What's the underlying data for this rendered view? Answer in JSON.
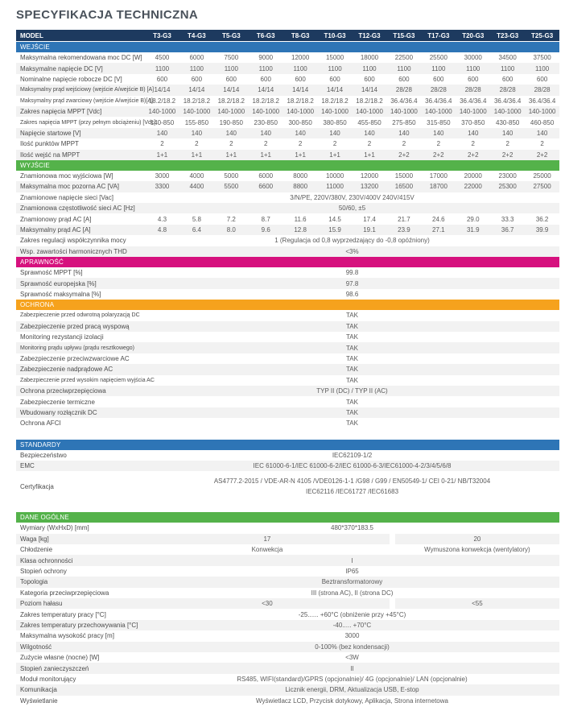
{
  "page": {
    "title": "SPECYFIKACJA TECHNICZNA"
  },
  "table": {
    "colors": {
      "navy": "#1d3a5f",
      "blue": "#2e75b6",
      "green": "#54b24a",
      "magenta": "#d6117e",
      "orange": "#f6a21d",
      "stripe": "#f2f2f2"
    },
    "header": {
      "label": "MODEL",
      "models": [
        "T3-G3",
        "T4-G3",
        "T5-G3",
        "T6-G3",
        "T8-G3",
        "T10-G3",
        "T12-G3",
        "T15-G3",
        "T17-G3",
        "T20-G3",
        "T23-G3",
        "T25-G3"
      ]
    },
    "sections": [
      {
        "title": "WEJŚCIE",
        "color": "blue",
        "rows": [
          {
            "label": "Maksymalna rekomendowana moc DC [W]",
            "type": "cols",
            "values": [
              "4500",
              "6000",
              "7500",
              "9000",
              "12000",
              "15000",
              "18000",
              "22500",
              "25500",
              "30000",
              "34500",
              "37500"
            ]
          },
          {
            "label": "Maksymalne napięcie DC [V]",
            "type": "cols",
            "values": [
              "1100",
              "1100",
              "1100",
              "1100",
              "1100",
              "1100",
              "1100",
              "1100",
              "1100",
              "1100",
              "1100",
              "1100"
            ]
          },
          {
            "label": "Nominalne napięcie robocze DC [V]",
            "type": "cols",
            "values": [
              "600",
              "600",
              "600",
              "600",
              "600",
              "600",
              "600",
              "600",
              "600",
              "600",
              "600",
              "600"
            ]
          },
          {
            "label": "Maksymalny prąd wejściowy (wejście A/wejście B) [A]",
            "type": "cols",
            "values": [
              "14/14",
              "14/14",
              "14/14",
              "14/14",
              "14/14",
              "14/14",
              "14/14",
              "28/28",
              "28/28",
              "28/28",
              "28/28",
              "28/28"
            ]
          },
          {
            "label": "Maksymalny prąd zwarciowy (wejście A/wejście B)[A]",
            "type": "cols",
            "values": [
              "18.2/18.2",
              "18.2/18.2",
              "18.2/18.2",
              "18.2/18.2",
              "18.2/18.2",
              "18.2/18.2",
              "18.2/18.2",
              "36.4/36.4",
              "36.4/36.4",
              "36.4/36.4",
              "36.4/36.4",
              "36.4/36.4"
            ]
          },
          {
            "label": "Zakres napięcia MPPT [Vdc]",
            "type": "cols",
            "values": [
              "140-1000",
              "140-1000",
              "140-1000",
              "140-1000",
              "140-1000",
              "140-1000",
              "140-1000",
              "140-1000",
              "140-1000",
              "140-1000",
              "140-1000",
              "140-1000"
            ]
          },
          {
            "label": "Zakres napięcia MPPT (przy pełnym obciążeniu) [Vdc]",
            "type": "cols",
            "values": [
              "140-850",
              "155-850",
              "190-850",
              "230-850",
              "300-850",
              "380-850",
              "455-850",
              "275-850",
              "315-850",
              "370-850",
              "430-850",
              "460-850"
            ]
          },
          {
            "label": "Napięcie startowe [V]",
            "type": "cols",
            "values": [
              "140",
              "140",
              "140",
              "140",
              "140",
              "140",
              "140",
              "140",
              "140",
              "140",
              "140",
              "140"
            ]
          },
          {
            "label": "Ilość punktów MPPT",
            "type": "cols",
            "values": [
              "2",
              "2",
              "2",
              "2",
              "2",
              "2",
              "2",
              "2",
              "2",
              "2",
              "2",
              "2"
            ]
          },
          {
            "label": "Ilość wejść na MPPT",
            "type": "cols",
            "values": [
              "1+1",
              "1+1",
              "1+1",
              "1+1",
              "1+1",
              "1+1",
              "1+1",
              "2+2",
              "2+2",
              "2+2",
              "2+2",
              "2+2"
            ]
          }
        ]
      },
      {
        "title": "WYJŚCIE",
        "color": "green",
        "rows": [
          {
            "label": "Znamionowa moc wyjściowa [W]",
            "type": "cols",
            "values": [
              "3000",
              "4000",
              "5000",
              "6000",
              "8000",
              "10000",
              "12000",
              "15000",
              "17000",
              "20000",
              "23000",
              "25000"
            ]
          },
          {
            "label": "Maksymalna moc pozorna AC [VA]",
            "type": "cols",
            "values": [
              "3300",
              "4400",
              "5500",
              "6600",
              "8800",
              "11000",
              "13200",
              "16500",
              "18700",
              "22000",
              "25300",
              "27500"
            ]
          },
          {
            "label": "Znamionowe napięcie sieci [Vac]",
            "type": "span",
            "value": "3/N/PE, 220V/380V, 230V/400V 240V/415V"
          },
          {
            "label": "Znamionowa częstotliwość sieci AC [Hz]",
            "type": "span",
            "value": "50/60, ±5"
          },
          {
            "label": "Znamionowy prąd AC [A]",
            "type": "cols",
            "values": [
              "4.3",
              "5.8",
              "7.2",
              "8.7",
              "11.6",
              "14.5",
              "17.4",
              "21.7",
              "24.6",
              "29.0",
              "33.3",
              "36.2"
            ]
          },
          {
            "label": "Maksymalny prąd AC [A]",
            "type": "cols",
            "values": [
              "4.8",
              "6.4",
              "8.0",
              "9.6",
              "12.8",
              "15.9",
              "19.1",
              "23.9",
              "27.1",
              "31.9",
              "36.7",
              "39.9"
            ]
          },
          {
            "label": "Zakres regulacji współczynnika mocy",
            "type": "span",
            "value": "1 (Regulacja od 0,8 wyprzedzający do -0,8 opóźniony)"
          },
          {
            "label": "Wsp. zawartości harmonicznych THD",
            "type": "span",
            "value": "<3%"
          }
        ]
      },
      {
        "title": "APRAWNOŚĆ",
        "color": "magenta",
        "rows": [
          {
            "label": "Sprawność MPPT [%]",
            "type": "span",
            "value": "99.8"
          },
          {
            "label": "Sprawność europejska [%]",
            "type": "span",
            "value": "97.8"
          },
          {
            "label": "Sprawność maksymalna [%]",
            "type": "span",
            "value": "98.6"
          }
        ]
      },
      {
        "title": "OCHRONA",
        "color": "orange",
        "gap_after": true,
        "rows": [
          {
            "label": "Zabezpieczenie przed odwrotną polaryzacją DC",
            "type": "span",
            "value": "TAK"
          },
          {
            "label": "Zabezpieczenie przed pracą wyspową",
            "type": "span",
            "value": "TAK"
          },
          {
            "label": "Monitoring rezystancji izolacji",
            "type": "span",
            "value": "TAK"
          },
          {
            "label": "Monitoring prądu upływu (prądu resztkowego)",
            "type": "span",
            "value": "TAK"
          },
          {
            "label": "Zabezpieczenie przeciwzwarciowe AC",
            "type": "span",
            "value": "TAK"
          },
          {
            "label": "Zabezpieczenie nadprądowe AC",
            "type": "span",
            "value": "TAK"
          },
          {
            "label": "Zabezpieczenie przed wysokim napięciem wyjścia AC",
            "type": "span",
            "value": "TAK"
          },
          {
            "label": "Ochrona przeciwprzepięciowa",
            "type": "span",
            "value": "TYP II (DC) / TYP II (AC)"
          },
          {
            "label": "Zabezpieczenie termiczne",
            "type": "span",
            "value": "TAK"
          },
          {
            "label": "Wbudowany rozłącznik DC",
            "type": "span",
            "value": "TAK"
          },
          {
            "label": "Ochrona AFCI",
            "type": "span",
            "value": "TAK"
          }
        ]
      },
      {
        "title": "STANDARDY",
        "color": "blue",
        "gap_after": true,
        "rows": [
          {
            "label": "Bezpieczeństwo",
            "type": "span",
            "value": "IEC62109-1/2"
          },
          {
            "label": "EMC",
            "type": "span",
            "value": "IEC 61000-6-1/IEC 61000-6-2/IEC 61000-6-3/IEC61000-4-2/3/4/5/6/8"
          },
          {
            "label": "Certyfikacja",
            "type": "span2",
            "lines": [
              "AS4777.2-2015 / VDE-AR-N 4105 /VDE0126-1-1  /G98  / G99 / EN50549-1/ CEI 0-21/ NB/T32004",
              "IEC62116 /IEC61727 /IEC61683"
            ]
          }
        ]
      },
      {
        "title": "DANE OGÓLNE",
        "color": "green",
        "rows": [
          {
            "label": "Wymiary (WxHxD) [mm]",
            "type": "span",
            "value": "480*370*183.5"
          },
          {
            "label": "Waga [kg]",
            "type": "split",
            "values": [
              "17",
              "20"
            ]
          },
          {
            "label": "Chłodzenie",
            "type": "split",
            "values": [
              "Konwekcja",
              "Wymuszona konwekcja (wentylatory)"
            ]
          },
          {
            "label": "Klasa ochronności",
            "type": "span",
            "value": "I"
          },
          {
            "label": "Stopień ochrony",
            "type": "span",
            "value": "IP65"
          },
          {
            "label": "Topologia",
            "type": "span",
            "value": "Beztransformatorowy"
          },
          {
            "label": "Kategoria przeciwprzepięciowa",
            "type": "span",
            "value": "III (strona AC), II (strona DC)"
          },
          {
            "label": "Poziom hałasu",
            "type": "split",
            "values": [
              "<30",
              "<55"
            ]
          },
          {
            "label": "Zakres temperatury pracy [°C]",
            "type": "span",
            "value": "-25...... +60°C (obniżenie przy +45°C)"
          },
          {
            "label": "Zakres temperatury przechowywania  [°C]",
            "type": "span",
            "value": "-40..... +70°C"
          },
          {
            "label": "Maksymalna wysokość pracy [m]",
            "type": "span",
            "value": "3000"
          },
          {
            "label": "Wilgotność",
            "type": "span",
            "value": "0-100% (bez kondensacji)"
          },
          {
            "label": "Zużycie własne (nocne) [W]",
            "type": "span",
            "value": "<3W"
          },
          {
            "label": "Stopień zanieczyszczeń",
            "type": "span",
            "value": "II"
          },
          {
            "label": "Moduł monitorujący",
            "type": "span",
            "value": "RS485, WIFI(standard)/GPRS (opcjonalnie)/ 4G (opcjonalnie)/ LAN (opcjonalnie)"
          },
          {
            "label": "Komunikacja",
            "type": "span",
            "value": "Licznik energii, DRM, Aktualizacja USB, E-stop"
          },
          {
            "label": "Wyświetlanie",
            "type": "span",
            "value": "Wyświetlacz LCD, Przycisk dotykowy, Aplikacja, Strona internetowa"
          }
        ]
      }
    ]
  }
}
